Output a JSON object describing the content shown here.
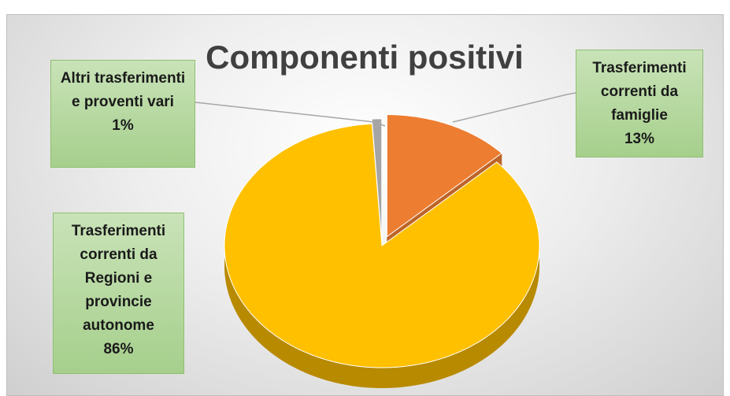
{
  "chart_data": {
    "type": "pie3d",
    "title": "Componenti positivi",
    "categories": [
      "Trasferimenti correnti da famiglie",
      "Trasferimenti correnti da Regioni e provincie autonome",
      "Altri trasferimenti e proventi vari"
    ],
    "values": [
      13,
      86,
      1
    ],
    "value_labels": [
      "13%",
      "86%",
      "1%"
    ],
    "colors": [
      "#ed7d31",
      "#ffc000",
      "#a5a5a5"
    ]
  }
}
